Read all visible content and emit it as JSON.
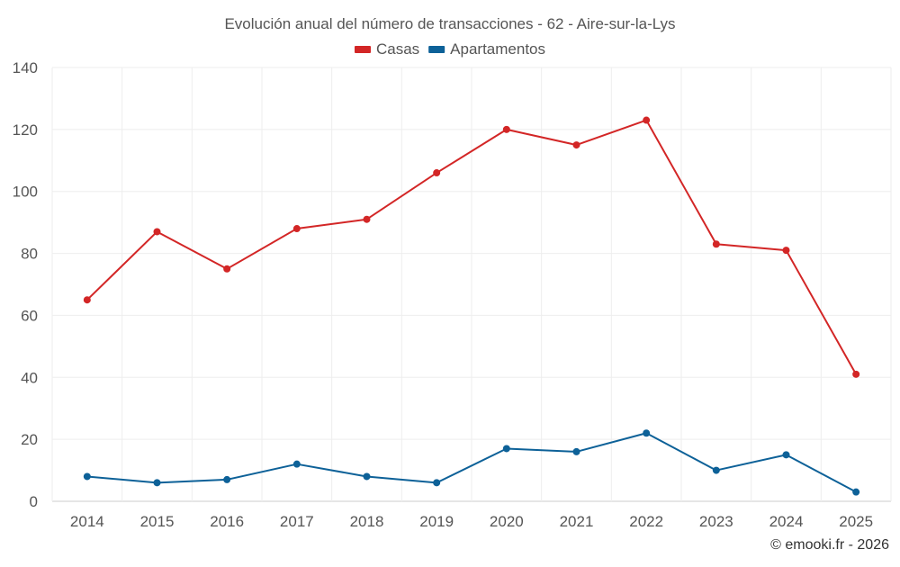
{
  "chart_data": {
    "type": "line",
    "title": "Evolución anual del número de transacciones - 62 - Aire-sur-la-Lys",
    "xlabel": "",
    "ylabel": "",
    "categories": [
      "2014",
      "2015",
      "2016",
      "2017",
      "2018",
      "2019",
      "2020",
      "2021",
      "2022",
      "2023",
      "2024",
      "2025"
    ],
    "ylim": [
      0,
      140
    ],
    "yticks": [
      0,
      20,
      40,
      60,
      80,
      100,
      120,
      140
    ],
    "grid": true,
    "legend_position": "top-center",
    "series": [
      {
        "name": "Casas",
        "color": "#d32626",
        "values": [
          65,
          87,
          75,
          88,
          91,
          106,
          120,
          115,
          123,
          83,
          81,
          41
        ]
      },
      {
        "name": "Apartamentos",
        "color": "#0d6198",
        "values": [
          8,
          6,
          7,
          12,
          8,
          6,
          17,
          16,
          22,
          10,
          15,
          3
        ]
      }
    ],
    "credit": "© emooki.fr - 2026"
  }
}
